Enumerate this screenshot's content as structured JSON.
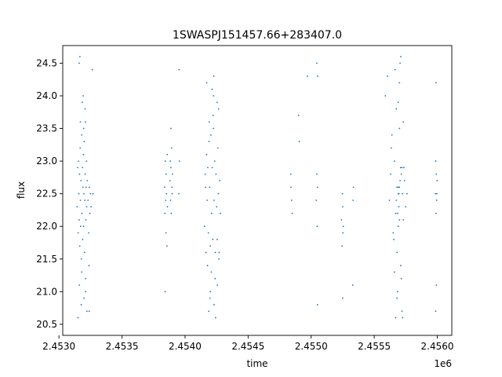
{
  "chart_data": {
    "type": "scatter",
    "title": "1SWASPJ151457.66+283407.0",
    "xlabel": "time",
    "ylabel": "flux",
    "x_offset_label": "1e6",
    "xlim": [
      2453030,
      2456115
    ],
    "ylim": [
      20.33,
      24.77
    ],
    "x_ticks": [
      2.453,
      2.4535,
      2.454,
      2.4545,
      2.455,
      2.4555,
      2.456
    ],
    "x_tick_labels": [
      "2.4530",
      "2.4535",
      "2.4540",
      "2.4545",
      "2.4550",
      "2.4555",
      "2.4560"
    ],
    "y_ticks": [
      20.5,
      21.0,
      21.5,
      22.0,
      22.5,
      23.0,
      23.5,
      24.0,
      24.5
    ],
    "y_tick_labels": [
      "20.5",
      "21.0",
      "21.5",
      "22.0",
      "22.5",
      "23.0",
      "23.5",
      "24.0",
      "24.5"
    ],
    "grid": false,
    "marker_color": "#1f77b4",
    "series": [
      {
        "x": [
          2453145,
          2453148,
          2453152,
          2453155,
          2453158,
          2453160,
          2453163,
          2453165,
          2453168,
          2453170,
          2453172,
          2453175,
          2453178,
          2453180,
          2453182,
          2453185,
          2453188,
          2453190,
          2453193,
          2453195,
          2453198,
          2453200,
          2453203,
          2453205,
          2453208,
          2453210,
          2453213,
          2453215,
          2453218,
          2453220,
          2453225,
          2453230,
          2453235,
          2453240,
          2453245,
          2453250,
          2453255,
          2453150,
          2453162,
          2453177,
          2453192,
          2453207,
          2453222,
          2453238,
          2453166,
          2453186,
          2453212,
          2453198,
          2453170,
          2453180,
          2453196,
          2453212,
          2453160,
          2453240,
          2453264,
          2453270,
          2453838,
          2453840,
          2453843,
          2453846,
          2453848,
          2453850,
          2453853,
          2453856,
          2453858,
          2453860,
          2453880,
          2453883,
          2453885,
          2453888,
          2453890,
          2453893,
          2453895,
          2453898,
          2453900,
          2453842,
          2453888,
          2453950,
          2453955,
          2453952,
          2454155,
          2454160,
          2454165,
          2454170,
          2454175,
          2454180,
          2454185,
          2454190,
          2454195,
          2454200,
          2454205,
          2454210,
          2454215,
          2454220,
          2454225,
          2454230,
          2454235,
          2454240,
          2454245,
          2454250,
          2454255,
          2454260,
          2454265,
          2454270,
          2454275,
          2454280,
          2454162,
          2454178,
          2454192,
          2454208,
          2454222,
          2454238,
          2454254,
          2454268,
          2454172,
          2454198,
          2454228,
          2454256,
          2454188,
          2454214,
          2454242,
          2454266,
          2454200,
          2454225,
          2454230,
          2454838,
          2454840,
          2454845,
          2454850,
          2454900,
          2454905,
          2454970,
          2455040,
          2455045,
          2455048,
          2455050,
          2455052,
          2455050,
          2455045,
          2455240,
          2455245,
          2455248,
          2455250,
          2455252,
          2455255,
          2455250,
          2455330,
          2455335,
          2455332,
          2455620,
          2455630,
          2455640,
          2455650,
          2455660,
          2455670,
          2455680,
          2455690,
          2455700,
          2455710,
          2455720,
          2455730,
          2455740,
          2455750,
          2455635,
          2455655,
          2455675,
          2455695,
          2455715,
          2455735,
          2455665,
          2455685,
          2455705,
          2455725,
          2455690,
          2455700,
          2455680,
          2455710,
          2455670,
          2455720,
          2455660,
          2455730,
          2455690,
          2455700,
          2455695,
          2455705,
          2455685,
          2455715,
          2455675,
          2455725,
          2455680,
          2455700,
          2455710,
          2455690,
          2455588,
          2455605,
          2455760,
          2455985,
          2455988,
          2455990,
          2455992,
          2455995,
          2455998,
          2455990,
          2455993,
          2455987,
          2455996
        ],
        "y": [
          22.3,
          22.9,
          21.9,
          23.0,
          22.5,
          22.1,
          22.8,
          21.7,
          23.2,
          22.4,
          22.0,
          22.7,
          21.5,
          23.4,
          22.2,
          22.9,
          21.8,
          22.6,
          23.1,
          22.0,
          22.5,
          23.3,
          21.6,
          22.4,
          22.8,
          23.6,
          22.1,
          22.6,
          23.0,
          22.3,
          22.7,
          22.4,
          21.9,
          22.6,
          22.2,
          22.5,
          22.3,
          20.6,
          21.1,
          20.8,
          24.0,
          23.8,
          20.7,
          21.4,
          24.6,
          23.9,
          21.0,
          20.9,
          23.6,
          21.3,
          23.5,
          21.2,
          24.5,
          20.7,
          24.4,
          22.5,
          22.6,
          22.2,
          23.0,
          22.4,
          21.9,
          22.8,
          22.5,
          21.7,
          23.1,
          22.3,
          22.7,
          23.0,
          22.4,
          22.9,
          22.2,
          23.2,
          22.6,
          22.5,
          22.8,
          21.0,
          23.5,
          22.5,
          23.0,
          24.4,
          22.0,
          22.8,
          21.6,
          23.1,
          22.4,
          22.9,
          21.9,
          23.3,
          22.6,
          21.7,
          23.4,
          22.2,
          22.9,
          21.8,
          23.5,
          22.4,
          23.0,
          21.6,
          22.8,
          22.3,
          21.8,
          23.2,
          22.5,
          21.6,
          22.7,
          22.2,
          22.6,
          21.4,
          23.6,
          21.3,
          23.7,
          21.2,
          23.9,
          21.5,
          24.2,
          20.9,
          24.3,
          21.1,
          20.7,
          24.1,
          20.6,
          23.8,
          21.0,
          24.0,
          20.8,
          22.8,
          22.6,
          22.4,
          22.2,
          23.7,
          23.3,
          24.3,
          22.4,
          22.8,
          22.0,
          22.6,
          24.3,
          20.8,
          24.5,
          22.1,
          21.7,
          22.5,
          22.3,
          21.9,
          22.0,
          20.9,
          21.1,
          22.6,
          22.4,
          22.4,
          22.8,
          23.4,
          21.9,
          23.0,
          22.2,
          21.6,
          22.6,
          23.5,
          21.4,
          22.9,
          22.1,
          22.7,
          22.3,
          23.2,
          21.8,
          23.8,
          22.5,
          21.2,
          22.9,
          24.4,
          21.0,
          24.5,
          20.6,
          23.9,
          24.2,
          20.9,
          24.6,
          20.6,
          20.7,
          21.3,
          23.6,
          22.5,
          22.6,
          22.3,
          22.7,
          22.2,
          22.8,
          22.4,
          22.5,
          22.6,
          22.1,
          22.9,
          22.0,
          24.0,
          24.3,
          22.5,
          22.5,
          23.0,
          22.2,
          22.8,
          22.4,
          22.7,
          24.2,
          21.1,
          20.7,
          22.5
        ]
      }
    ]
  }
}
